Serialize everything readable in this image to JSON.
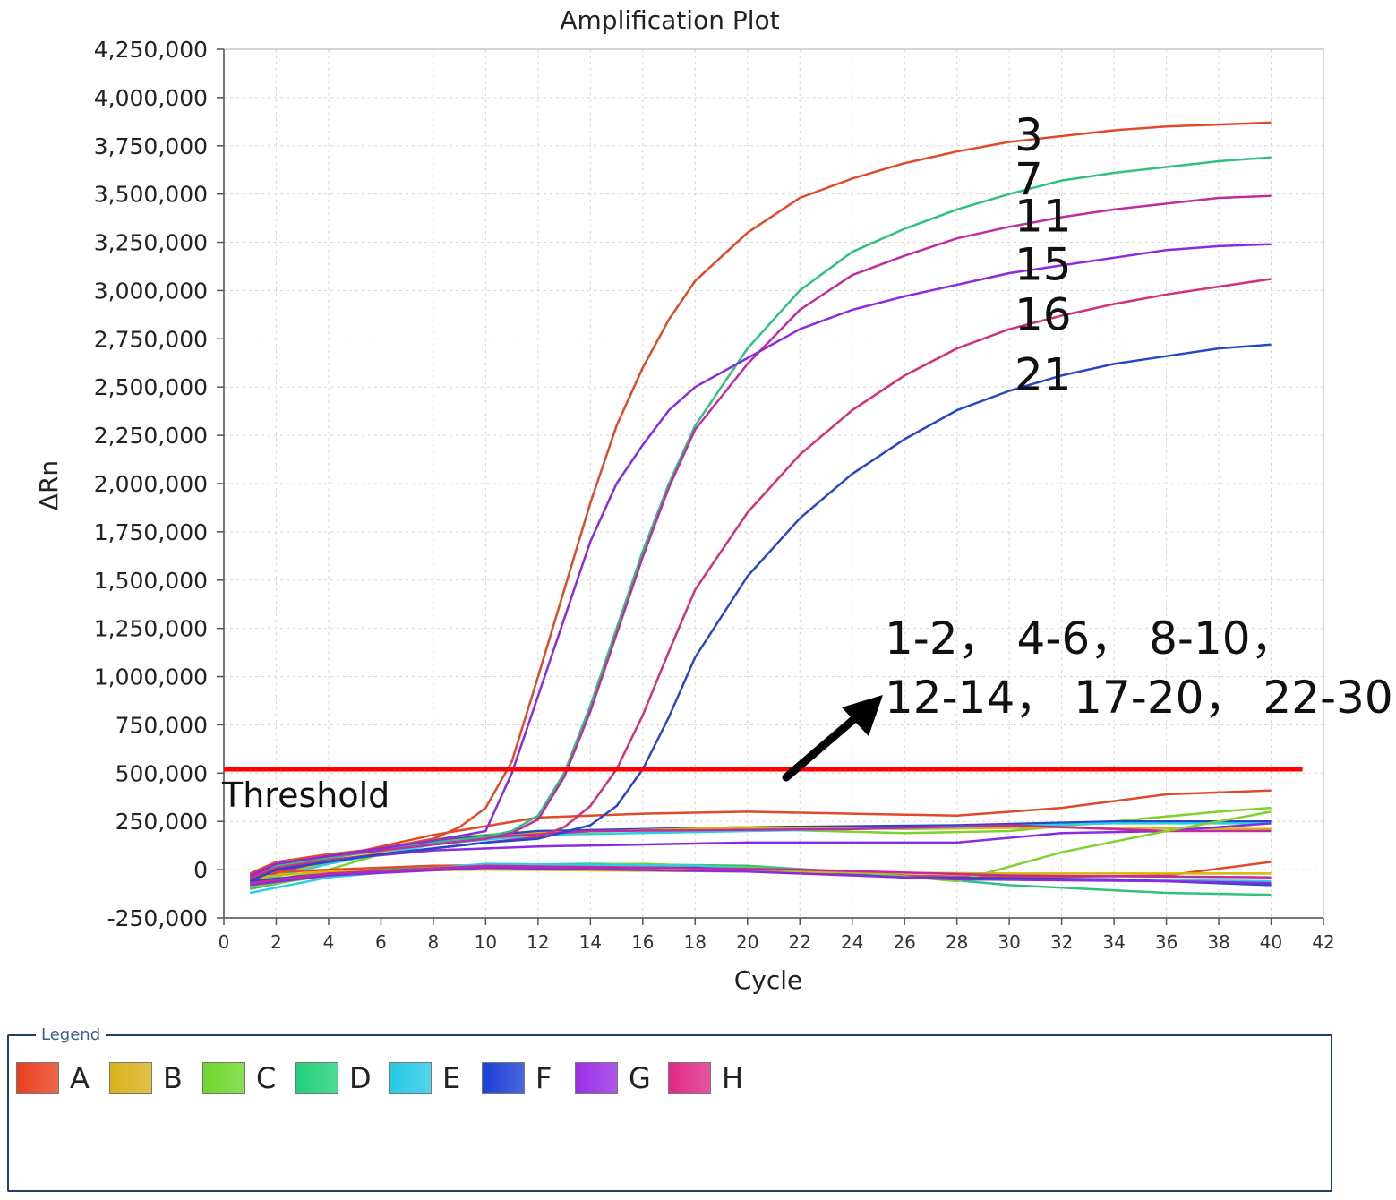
{
  "chart_data": {
    "type": "line",
    "title": "Amplification Plot",
    "xlabel": "Cycle",
    "ylabel": "ΔRn",
    "xlim": [
      0,
      42
    ],
    "ylim": [
      -250000,
      4250000
    ],
    "x_ticks": [
      "0",
      "2",
      "4",
      "6",
      "8",
      "10",
      "12",
      "14",
      "16",
      "18",
      "20",
      "22",
      "24",
      "26",
      "28",
      "30",
      "32",
      "34",
      "36",
      "38",
      "40",
      "42"
    ],
    "y_ticks": [
      "-250,000",
      "0",
      "250,000",
      "500,000",
      "750,000",
      "1,000,000",
      "1,250,000",
      "1,500,000",
      "1,750,000",
      "2,000,000",
      "2,250,000",
      "2,500,000",
      "2,750,000",
      "3,000,000",
      "3,250,000",
      "3,500,000",
      "3,750,000",
      "4,000,000",
      "4,250,000"
    ],
    "grid": true,
    "threshold": {
      "value": 520000,
      "label": "Threshold",
      "color": "#ff0000"
    },
    "positive_curves": [
      {
        "label": "3",
        "color": "#e04a2a",
        "points": [
          [
            1,
            -20000
          ],
          [
            2,
            40000
          ],
          [
            4,
            80000
          ],
          [
            6,
            110000
          ],
          [
            8,
            160000
          ],
          [
            9,
            220000
          ],
          [
            10,
            320000
          ],
          [
            11,
            560000
          ],
          [
            12,
            1000000
          ],
          [
            13,
            1450000
          ],
          [
            14,
            1900000
          ],
          [
            15,
            2300000
          ],
          [
            16,
            2600000
          ],
          [
            17,
            2850000
          ],
          [
            18,
            3050000
          ],
          [
            20,
            3300000
          ],
          [
            22,
            3480000
          ],
          [
            24,
            3580000
          ],
          [
            26,
            3660000
          ],
          [
            28,
            3720000
          ],
          [
            30,
            3770000
          ],
          [
            32,
            3800000
          ],
          [
            34,
            3830000
          ],
          [
            36,
            3850000
          ],
          [
            38,
            3860000
          ],
          [
            40,
            3870000
          ]
        ]
      },
      {
        "label": "7",
        "color": "#2ec27e",
        "points": [
          [
            1,
            -60000
          ],
          [
            2,
            20000
          ],
          [
            4,
            60000
          ],
          [
            6,
            100000
          ],
          [
            8,
            140000
          ],
          [
            10,
            170000
          ],
          [
            11,
            200000
          ],
          [
            12,
            280000
          ],
          [
            13,
            500000
          ],
          [
            14,
            850000
          ],
          [
            15,
            1250000
          ],
          [
            16,
            1650000
          ],
          [
            17,
            2000000
          ],
          [
            18,
            2300000
          ],
          [
            20,
            2700000
          ],
          [
            22,
            3000000
          ],
          [
            24,
            3200000
          ],
          [
            26,
            3320000
          ],
          [
            28,
            3420000
          ],
          [
            30,
            3500000
          ],
          [
            32,
            3570000
          ],
          [
            34,
            3610000
          ],
          [
            36,
            3640000
          ],
          [
            38,
            3670000
          ],
          [
            40,
            3690000
          ]
        ]
      },
      {
        "label": "11",
        "color": "#c42aa0",
        "points": [
          [
            1,
            -40000
          ],
          [
            2,
            30000
          ],
          [
            4,
            70000
          ],
          [
            6,
            100000
          ],
          [
            8,
            130000
          ],
          [
            10,
            160000
          ],
          [
            11,
            190000
          ],
          [
            12,
            260000
          ],
          [
            13,
            480000
          ],
          [
            14,
            820000
          ],
          [
            15,
            1220000
          ],
          [
            16,
            1620000
          ],
          [
            17,
            1980000
          ],
          [
            18,
            2280000
          ],
          [
            20,
            2620000
          ],
          [
            22,
            2900000
          ],
          [
            24,
            3080000
          ],
          [
            26,
            3180000
          ],
          [
            28,
            3270000
          ],
          [
            30,
            3330000
          ],
          [
            32,
            3380000
          ],
          [
            34,
            3420000
          ],
          [
            36,
            3450000
          ],
          [
            38,
            3480000
          ],
          [
            40,
            3490000
          ]
        ]
      },
      {
        "label": "15",
        "color": "#8a2be2",
        "points": [
          [
            1,
            -30000
          ],
          [
            2,
            30000
          ],
          [
            4,
            70000
          ],
          [
            6,
            110000
          ],
          [
            8,
            150000
          ],
          [
            10,
            200000
          ],
          [
            11,
            500000
          ],
          [
            12,
            900000
          ],
          [
            13,
            1300000
          ],
          [
            14,
            1700000
          ],
          [
            15,
            2000000
          ],
          [
            16,
            2200000
          ],
          [
            17,
            2380000
          ],
          [
            18,
            2500000
          ],
          [
            20,
            2650000
          ],
          [
            22,
            2800000
          ],
          [
            24,
            2900000
          ],
          [
            26,
            2970000
          ],
          [
            28,
            3030000
          ],
          [
            30,
            3090000
          ],
          [
            32,
            3130000
          ],
          [
            34,
            3170000
          ],
          [
            36,
            3210000
          ],
          [
            38,
            3230000
          ],
          [
            40,
            3240000
          ]
        ]
      },
      {
        "label": "16",
        "color": "#d1307a",
        "points": [
          [
            1,
            -50000
          ],
          [
            2,
            10000
          ],
          [
            4,
            50000
          ],
          [
            6,
            80000
          ],
          [
            8,
            110000
          ],
          [
            10,
            140000
          ],
          [
            12,
            170000
          ],
          [
            13,
            220000
          ],
          [
            14,
            330000
          ],
          [
            15,
            520000
          ],
          [
            16,
            800000
          ],
          [
            17,
            1130000
          ],
          [
            18,
            1450000
          ],
          [
            20,
            1850000
          ],
          [
            22,
            2150000
          ],
          [
            24,
            2380000
          ],
          [
            26,
            2560000
          ],
          [
            28,
            2700000
          ],
          [
            30,
            2800000
          ],
          [
            32,
            2870000
          ],
          [
            34,
            2930000
          ],
          [
            36,
            2980000
          ],
          [
            38,
            3020000
          ],
          [
            40,
            3060000
          ]
        ]
      },
      {
        "label": "21",
        "color": "#2a46c8",
        "points": [
          [
            1,
            -60000
          ],
          [
            2,
            0
          ],
          [
            4,
            40000
          ],
          [
            6,
            80000
          ],
          [
            8,
            110000
          ],
          [
            10,
            140000
          ],
          [
            12,
            160000
          ],
          [
            14,
            230000
          ],
          [
            15,
            330000
          ],
          [
            16,
            520000
          ],
          [
            17,
            790000
          ],
          [
            18,
            1100000
          ],
          [
            20,
            1520000
          ],
          [
            22,
            1820000
          ],
          [
            24,
            2050000
          ],
          [
            26,
            2230000
          ],
          [
            28,
            2380000
          ],
          [
            30,
            2480000
          ],
          [
            32,
            2560000
          ],
          [
            34,
            2620000
          ],
          [
            36,
            2660000
          ],
          [
            38,
            2700000
          ],
          [
            40,
            2720000
          ]
        ]
      }
    ],
    "negative_group_label": "1-2, 4-6, 8-10, 12-14, 17-20, 22-30",
    "negative_group_text": [
      "1-2， 4-6， 8-10，",
      "12-14， 17-20， 22-30"
    ],
    "negative_curves": [
      {
        "color": "#e04a2a",
        "points": [
          [
            1,
            -20000
          ],
          [
            4,
            60000
          ],
          [
            8,
            180000
          ],
          [
            12,
            270000
          ],
          [
            16,
            290000
          ],
          [
            20,
            300000
          ],
          [
            24,
            290000
          ],
          [
            28,
            280000
          ],
          [
            32,
            320000
          ],
          [
            36,
            390000
          ],
          [
            40,
            410000
          ]
        ]
      },
      {
        "color": "#7fd12c",
        "points": [
          [
            1,
            -80000
          ],
          [
            4,
            0
          ],
          [
            8,
            160000
          ],
          [
            12,
            200000
          ],
          [
            20,
            210000
          ],
          [
            26,
            190000
          ],
          [
            30,
            200000
          ],
          [
            34,
            250000
          ],
          [
            38,
            300000
          ],
          [
            40,
            320000
          ]
        ]
      },
      {
        "color": "#2a46c8",
        "points": [
          [
            1,
            -40000
          ],
          [
            4,
            60000
          ],
          [
            8,
            150000
          ],
          [
            12,
            200000
          ],
          [
            20,
            220000
          ],
          [
            28,
            230000
          ],
          [
            34,
            250000
          ],
          [
            40,
            250000
          ]
        ]
      },
      {
        "color": "#d4b800",
        "points": [
          [
            1,
            -60000
          ],
          [
            4,
            40000
          ],
          [
            8,
            140000
          ],
          [
            12,
            190000
          ],
          [
            20,
            220000
          ],
          [
            26,
            210000
          ],
          [
            32,
            220000
          ],
          [
            40,
            210000
          ]
        ]
      },
      {
        "color": "#2ad0e0",
        "points": [
          [
            1,
            -70000
          ],
          [
            4,
            30000
          ],
          [
            8,
            130000
          ],
          [
            12,
            180000
          ],
          [
            20,
            200000
          ],
          [
            28,
            220000
          ],
          [
            34,
            240000
          ],
          [
            40,
            240000
          ]
        ]
      },
      {
        "color": "#8a2be2",
        "points": [
          [
            1,
            -50000
          ],
          [
            4,
            50000
          ],
          [
            8,
            100000
          ],
          [
            12,
            120000
          ],
          [
            20,
            140000
          ],
          [
            28,
            140000
          ],
          [
            32,
            190000
          ],
          [
            36,
            200000
          ],
          [
            40,
            240000
          ]
        ]
      },
      {
        "color": "#c42aa0",
        "points": [
          [
            1,
            -50000
          ],
          [
            4,
            60000
          ],
          [
            8,
            150000
          ],
          [
            14,
            200000
          ],
          [
            24,
            210000
          ],
          [
            30,
            230000
          ],
          [
            36,
            200000
          ],
          [
            40,
            200000
          ]
        ]
      },
      {
        "color": "#2ec27e",
        "points": [
          [
            1,
            -100000
          ],
          [
            4,
            -20000
          ],
          [
            8,
            20000
          ],
          [
            14,
            30000
          ],
          [
            20,
            20000
          ],
          [
            26,
            -30000
          ],
          [
            30,
            -80000
          ],
          [
            36,
            -120000
          ],
          [
            40,
            -130000
          ]
        ]
      },
      {
        "color": "#e04a2a",
        "points": [
          [
            1,
            -20000
          ],
          [
            4,
            0
          ],
          [
            8,
            20000
          ],
          [
            14,
            20000
          ],
          [
            20,
            0
          ],
          [
            26,
            -30000
          ],
          [
            30,
            -40000
          ],
          [
            36,
            -30000
          ],
          [
            40,
            40000
          ]
        ]
      },
      {
        "color": "#7fd12c",
        "points": [
          [
            1,
            -90000
          ],
          [
            4,
            -30000
          ],
          [
            8,
            10000
          ],
          [
            16,
            30000
          ],
          [
            24,
            -10000
          ],
          [
            28,
            -60000
          ],
          [
            32,
            90000
          ],
          [
            36,
            200000
          ],
          [
            40,
            300000
          ]
        ]
      },
      {
        "color": "#2ad0e0",
        "points": [
          [
            1,
            -120000
          ],
          [
            4,
            -40000
          ],
          [
            10,
            30000
          ],
          [
            18,
            20000
          ],
          [
            26,
            -40000
          ],
          [
            32,
            -50000
          ],
          [
            40,
            -60000
          ]
        ]
      },
      {
        "color": "#2a46c8",
        "points": [
          [
            1,
            -60000
          ],
          [
            4,
            -20000
          ],
          [
            10,
            10000
          ],
          [
            18,
            10000
          ],
          [
            26,
            -40000
          ],
          [
            34,
            -50000
          ],
          [
            40,
            -80000
          ]
        ]
      },
      {
        "color": "#d4b800",
        "points": [
          [
            1,
            -40000
          ],
          [
            4,
            -10000
          ],
          [
            10,
            0
          ],
          [
            20,
            -10000
          ],
          [
            30,
            -20000
          ],
          [
            40,
            -20000
          ]
        ]
      },
      {
        "color": "#8a2be2",
        "points": [
          [
            1,
            -80000
          ],
          [
            4,
            -30000
          ],
          [
            10,
            10000
          ],
          [
            20,
            -10000
          ],
          [
            28,
            -50000
          ],
          [
            36,
            -60000
          ],
          [
            40,
            -70000
          ]
        ]
      },
      {
        "color": "#c42aa0",
        "points": [
          [
            1,
            -70000
          ],
          [
            4,
            -20000
          ],
          [
            10,
            20000
          ],
          [
            22,
            0
          ],
          [
            30,
            -30000
          ],
          [
            40,
            -40000
          ]
        ]
      }
    ]
  },
  "legend": {
    "title": "Legend",
    "items": [
      {
        "label": "A",
        "color": "#e8401e"
      },
      {
        "label": "B",
        "color": "#d9b21a"
      },
      {
        "label": "C",
        "color": "#6fd62a"
      },
      {
        "label": "D",
        "color": "#21d07a"
      },
      {
        "label": "E",
        "color": "#26c9e6"
      },
      {
        "label": "F",
        "color": "#1c3fd6"
      },
      {
        "label": "G",
        "color": "#9b2ee6"
      },
      {
        "label": "H",
        "color": "#e02a86"
      }
    ]
  }
}
